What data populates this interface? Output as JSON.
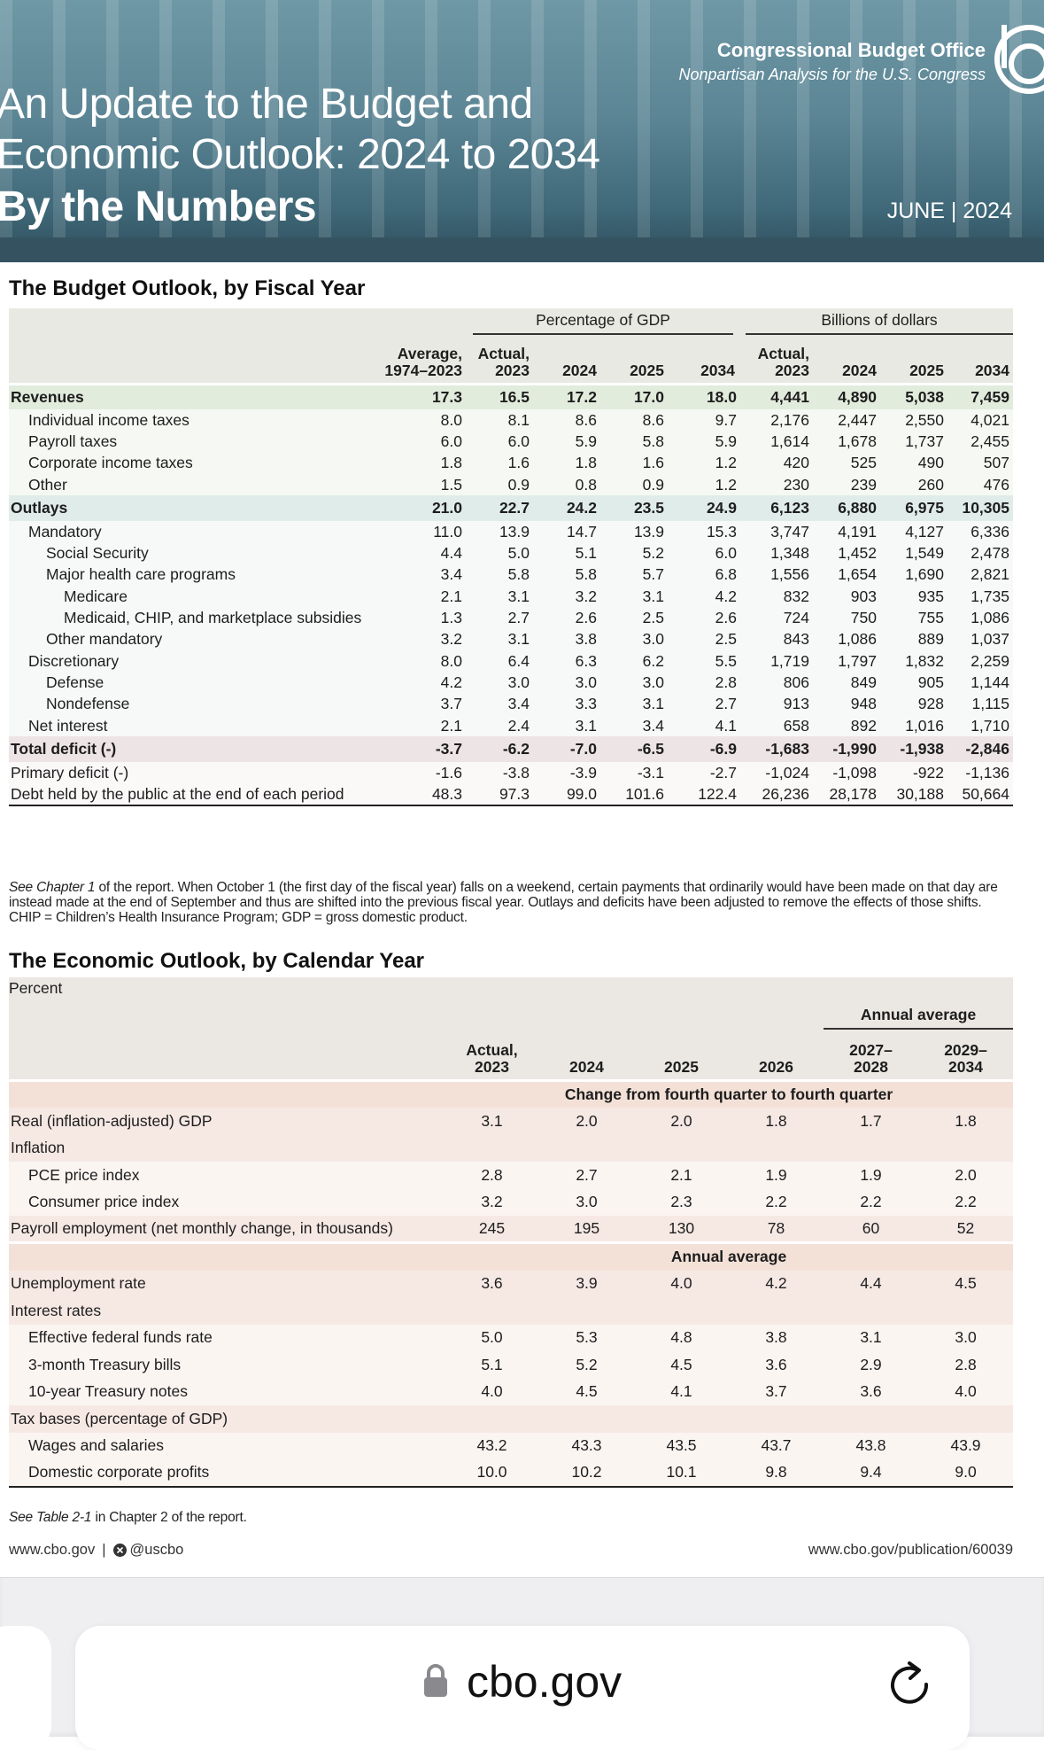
{
  "header": {
    "org": "Congressional Budget Office",
    "tagline": "Nonpartisan Analysis for the U.S. Congress",
    "title_lines": [
      "An Update to the Budget and",
      "Economic Outlook: 2024 to 2034",
      "By the Numbers"
    ],
    "date": "JUNE | 2024"
  },
  "budget": {
    "title": "The Budget Outlook, by Fiscal Year",
    "group_headers": [
      "Percentage of GDP",
      "Billions of dollars"
    ],
    "columns": [
      [
        "Average,",
        "1974–2023"
      ],
      [
        "Actual,",
        "2023"
      ],
      [
        "2024"
      ],
      [
        "2025"
      ],
      [
        "2034"
      ],
      [
        "Actual,",
        "2023"
      ],
      [
        "2024"
      ],
      [
        "2025"
      ],
      [
        "2034"
      ]
    ],
    "rows": [
      {
        "label": "Revenues",
        "cells": [
          "17.3",
          "16.5",
          "17.2",
          "17.0",
          "18.0",
          "4,441",
          "4,890",
          "5,038",
          "7,459"
        ]
      },
      {
        "label": "Individual income taxes",
        "cells": [
          "8.0",
          "8.1",
          "8.6",
          "8.6",
          "9.7",
          "2,176",
          "2,447",
          "2,550",
          "4,021"
        ]
      },
      {
        "label": "Payroll taxes",
        "cells": [
          "6.0",
          "6.0",
          "5.9",
          "5.8",
          "5.9",
          "1,614",
          "1,678",
          "1,737",
          "2,455"
        ]
      },
      {
        "label": "Corporate income taxes",
        "cells": [
          "1.8",
          "1.6",
          "1.8",
          "1.6",
          "1.2",
          "420",
          "525",
          "490",
          "507"
        ]
      },
      {
        "label": "Other",
        "cells": [
          "1.5",
          "0.9",
          "0.8",
          "0.9",
          "1.2",
          "230",
          "239",
          "260",
          "476"
        ]
      },
      {
        "label": "Outlays",
        "cells": [
          "21.0",
          "22.7",
          "24.2",
          "23.5",
          "24.9",
          "6,123",
          "6,880",
          "6,975",
          "10,305"
        ]
      },
      {
        "label": "Mandatory",
        "cells": [
          "11.0",
          "13.9",
          "14.7",
          "13.9",
          "15.3",
          "3,747",
          "4,191",
          "4,127",
          "6,336"
        ]
      },
      {
        "label": "Social Security",
        "cells": [
          "4.4",
          "5.0",
          "5.1",
          "5.2",
          "6.0",
          "1,348",
          "1,452",
          "1,549",
          "2,478"
        ]
      },
      {
        "label": "Major health care programs",
        "cells": [
          "3.4",
          "5.8",
          "5.8",
          "5.7",
          "6.8",
          "1,556",
          "1,654",
          "1,690",
          "2,821"
        ]
      },
      {
        "label": "Medicare",
        "cells": [
          "2.1",
          "3.1",
          "3.2",
          "3.1",
          "4.2",
          "832",
          "903",
          "935",
          "1,735"
        ]
      },
      {
        "label": "Medicaid, CHIP, and marketplace subsidies",
        "cells": [
          "1.3",
          "2.7",
          "2.6",
          "2.5",
          "2.6",
          "724",
          "750",
          "755",
          "1,086"
        ]
      },
      {
        "label": "Other mandatory",
        "cells": [
          "3.2",
          "3.1",
          "3.8",
          "3.0",
          "2.5",
          "843",
          "1,086",
          "889",
          "1,037"
        ]
      },
      {
        "label": "Discretionary",
        "cells": [
          "8.0",
          "6.4",
          "6.3",
          "6.2",
          "5.5",
          "1,719",
          "1,797",
          "1,832",
          "2,259"
        ]
      },
      {
        "label": "Defense",
        "cells": [
          "4.2",
          "3.0",
          "3.0",
          "3.0",
          "2.8",
          "806",
          "849",
          "905",
          "1,144"
        ]
      },
      {
        "label": "Nondefense",
        "cells": [
          "3.7",
          "3.4",
          "3.3",
          "3.1",
          "2.7",
          "913",
          "948",
          "928",
          "1,115"
        ]
      },
      {
        "label": "Net interest",
        "cells": [
          "2.1",
          "2.4",
          "3.1",
          "3.4",
          "4.1",
          "658",
          "892",
          "1,016",
          "1,710"
        ]
      },
      {
        "label": "Total deficit (-)",
        "cells": [
          "-3.7",
          "-6.2",
          "-7.0",
          "-6.5",
          "-6.9",
          "-1,683",
          "-1,990",
          "-1,938",
          "-2,846"
        ]
      },
      {
        "label": "Primary deficit (-)",
        "cells": [
          "-1.6",
          "-3.8",
          "-3.9",
          "-3.1",
          "-2.7",
          "-1,024",
          "-1,098",
          "-922",
          "-1,136"
        ]
      },
      {
        "label": "Debt held by the public at the end of each period",
        "cells": [
          "48.3",
          "97.3",
          "99.0",
          "101.6",
          "122.4",
          "26,236",
          "28,178",
          "30,188",
          "50,664"
        ]
      }
    ],
    "note": [
      "See Chapter 1",
      " of the report. When October 1 (the first day of the fiscal year) falls on a weekend, certain payments that ordinarily would have been made on that day are instead made at the end of September and thus are shifted into the previous fiscal year. Outlays and deficits have been adjusted to remove the effects of those shifts.",
      "CHIP = Children’s Health Insurance Program; GDP = gross domestic product."
    ]
  },
  "economic": {
    "title": "The Economic Outlook, by Calendar Year",
    "unit": "Percent",
    "group_header": "Annual average",
    "columns": [
      [
        "Actual,",
        "2023"
      ],
      [
        "2024"
      ],
      [
        "2025"
      ],
      [
        "2026"
      ],
      [
        "2027–",
        "2028"
      ],
      [
        "2029–",
        "2034"
      ]
    ],
    "sections": [
      {
        "heading": "Change from fourth quarter to fourth quarter",
        "rows": [
          {
            "label": "Real (inflation-adjusted) GDP",
            "cells": [
              "3.1",
              "2.0",
              "2.0",
              "1.8",
              "1.7",
              "1.8"
            ]
          },
          {
            "label": "Inflation"
          },
          {
            "label": "PCE price index",
            "cells": [
              "2.8",
              "2.7",
              "2.1",
              "1.9",
              "1.9",
              "2.0"
            ]
          },
          {
            "label": "Consumer price index",
            "cells": [
              "3.2",
              "3.0",
              "2.3",
              "2.2",
              "2.2",
              "2.2"
            ]
          },
          {
            "label": "Payroll employment (net monthly change, in thousands)",
            "cells": [
              "245",
              "195",
              "130",
              "78",
              "60",
              "52"
            ]
          }
        ]
      },
      {
        "heading": "Annual average",
        "rows": [
          {
            "label": "Unemployment rate",
            "cells": [
              "3.6",
              "3.9",
              "4.0",
              "4.2",
              "4.4",
              "4.5"
            ]
          },
          {
            "label": "Interest rates"
          },
          {
            "label": "Effective federal funds rate",
            "cells": [
              "5.0",
              "5.3",
              "4.8",
              "3.8",
              "3.1",
              "3.0"
            ]
          },
          {
            "label": "3-month Treasury bills",
            "cells": [
              "5.1",
              "5.2",
              "4.5",
              "3.6",
              "2.9",
              "2.8"
            ]
          },
          {
            "label": "10-year Treasury notes",
            "cells": [
              "4.0",
              "4.5",
              "4.1",
              "3.7",
              "3.6",
              "4.0"
            ]
          },
          {
            "label": "Tax bases (percentage of GDP)"
          },
          {
            "label": "Wages and salaries",
            "cells": [
              "43.2",
              "43.3",
              "43.5",
              "43.7",
              "43.8",
              "43.9"
            ]
          },
          {
            "label": "Domestic corporate profits",
            "cells": [
              "10.0",
              "10.2",
              "10.1",
              "9.8",
              "9.4",
              "9.0"
            ]
          }
        ]
      }
    ],
    "note": [
      "See Table 2-1",
      " in Chapter 2 of the report."
    ]
  },
  "footer": {
    "site": "www.cbo.gov",
    "separator": "|",
    "handle": "@uscbo",
    "publication": "www.cbo.gov/publication/60039"
  },
  "browser": {
    "url": "cbo.gov"
  }
}
